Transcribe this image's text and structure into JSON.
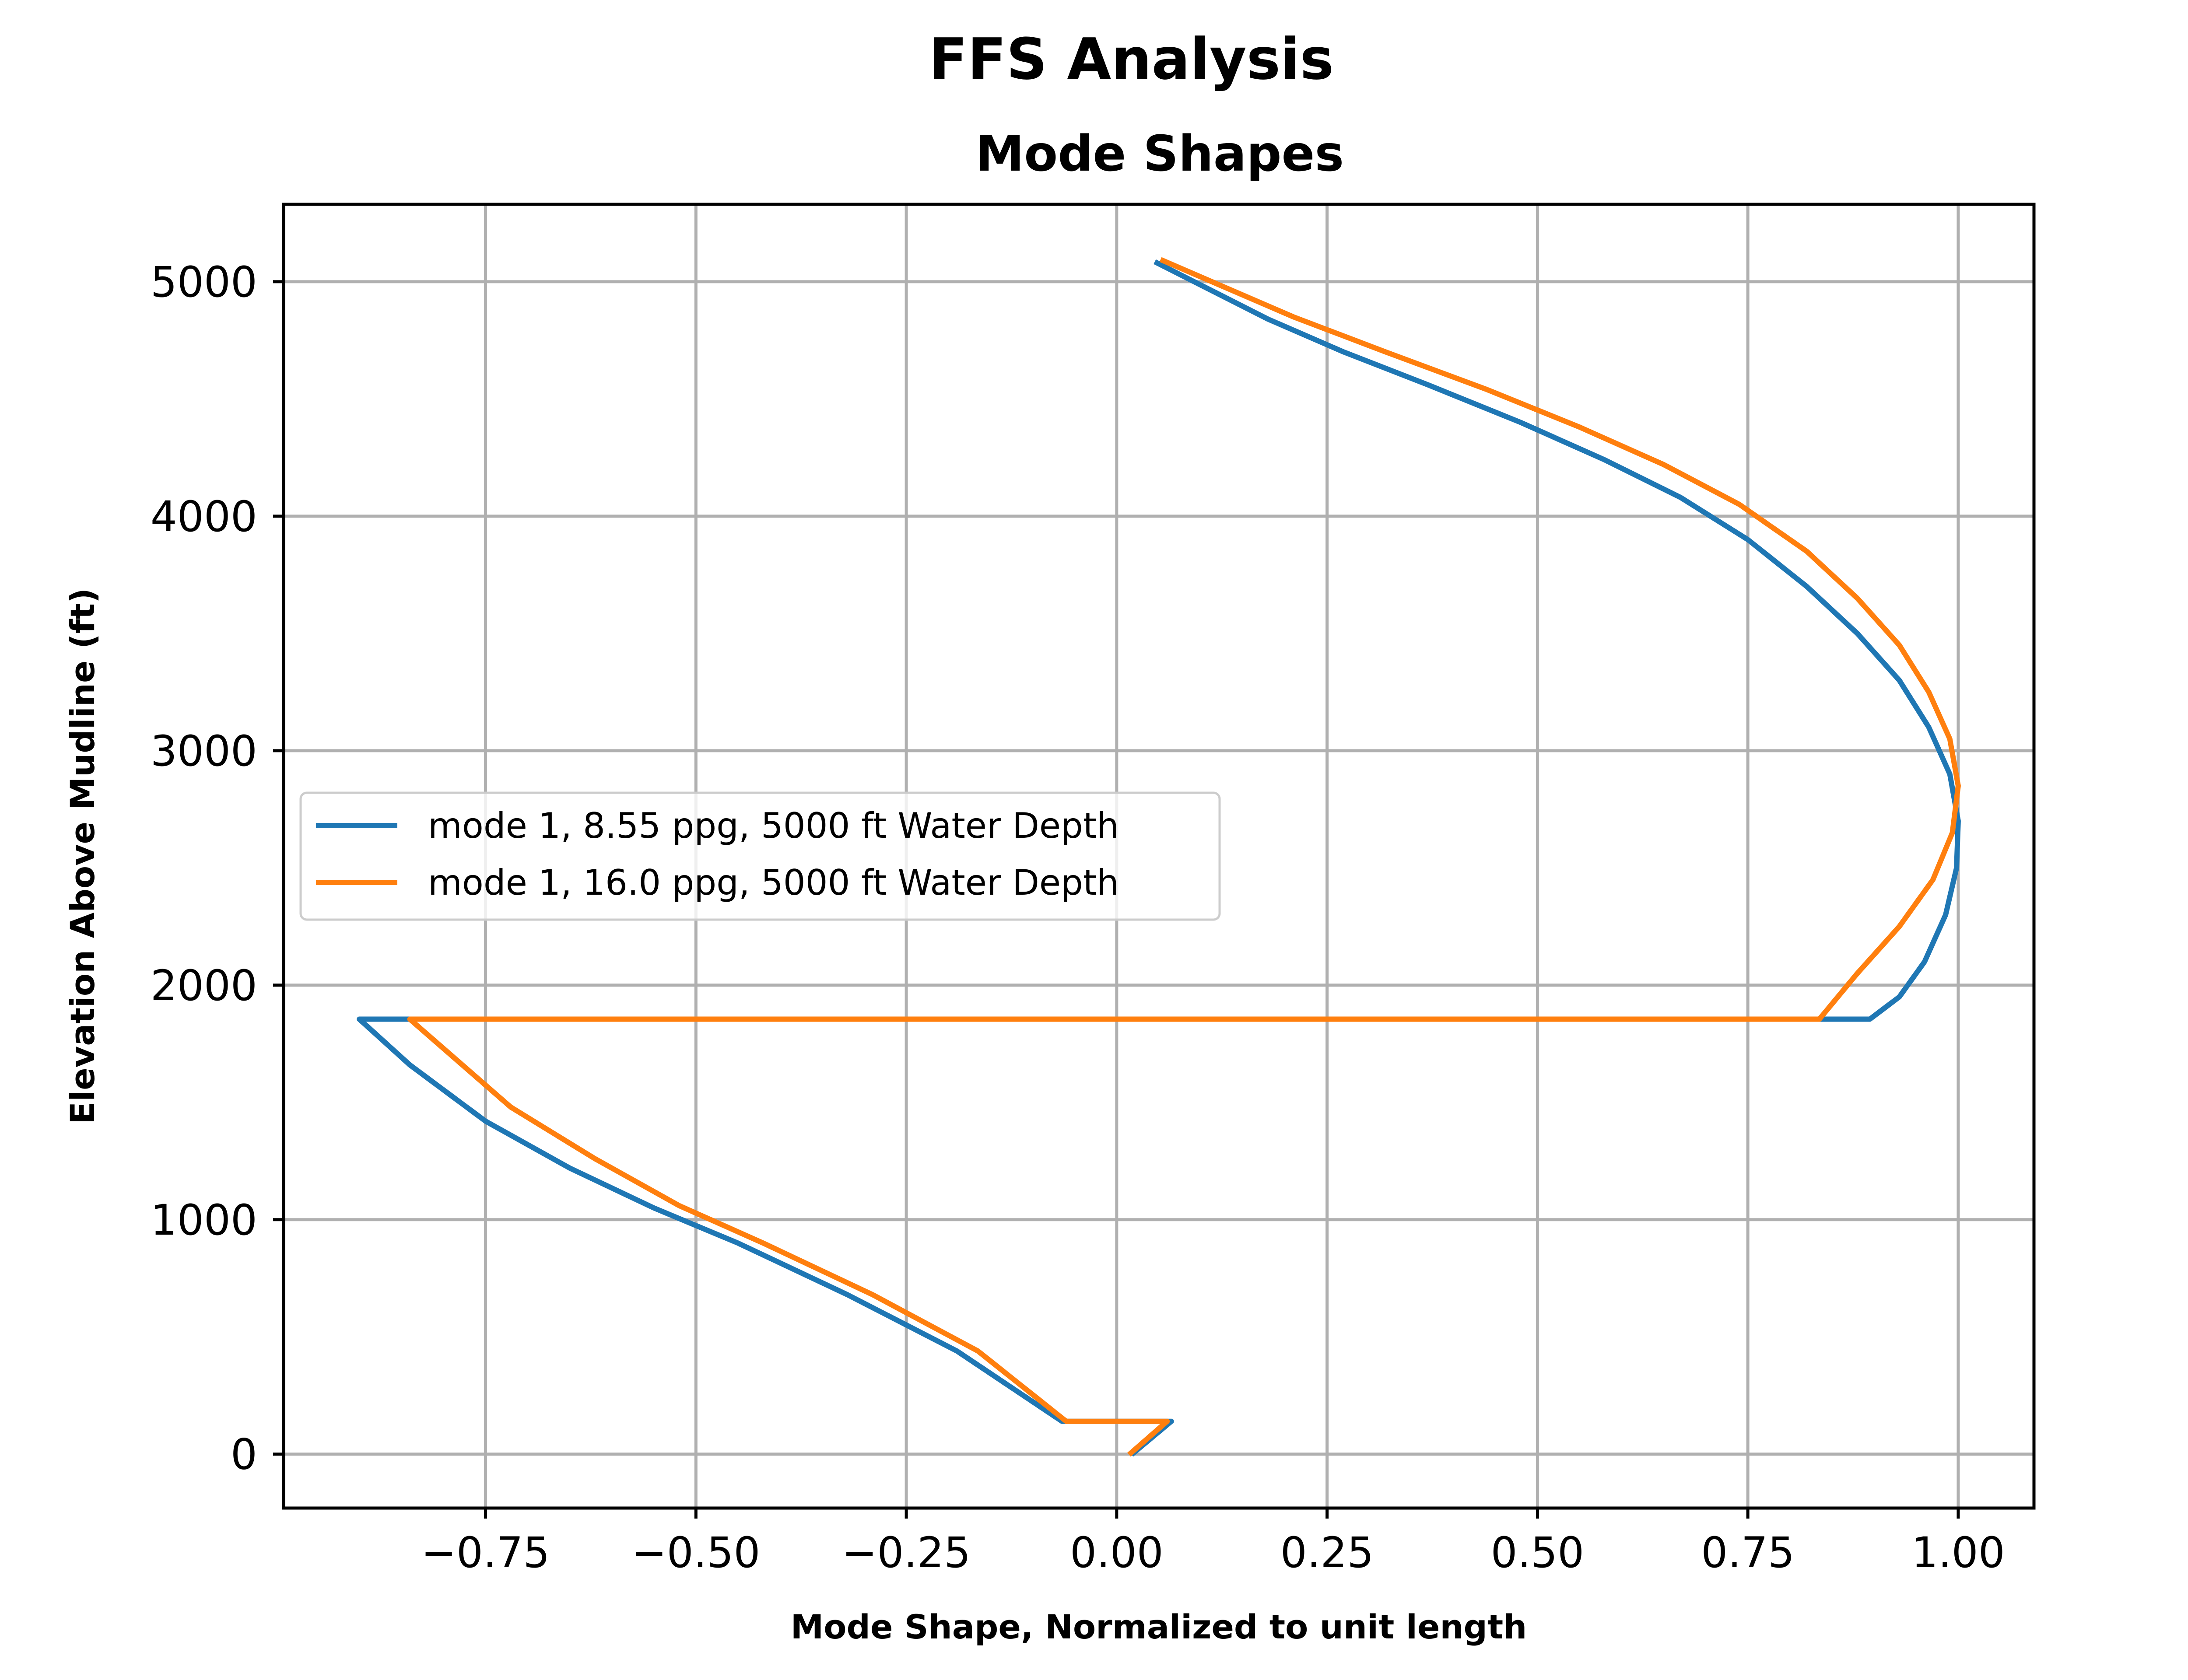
{
  "chart_data": {
    "type": "line",
    "suptitle": "FFS Analysis",
    "title": "Mode Shapes",
    "xlabel": "Mode Shape, Normalized to unit length",
    "ylabel": "Elevation Above Mudline (ft)",
    "xlim": [
      -0.99,
      1.09
    ],
    "ylim": [
      -230,
      5330
    ],
    "xticks": [
      -0.75,
      -0.5,
      -0.25,
      0.0,
      0.25,
      0.5,
      0.75,
      1.0
    ],
    "xtick_labels": [
      "−0.75",
      "−0.50",
      "−0.25",
      "0.00",
      "0.25",
      "0.50",
      "0.75",
      "1.00"
    ],
    "yticks": [
      0,
      1000,
      2000,
      3000,
      4000,
      5000
    ],
    "ytick_labels": [
      "0",
      "1000",
      "2000",
      "3000",
      "4000",
      "5000"
    ],
    "grid": true,
    "legend_position": "center-left",
    "series": [
      {
        "name": "mode 1, 8.55 ppg, 5000 ft Water Depth",
        "color": "#1f77b4",
        "x": [
          0.02,
          0.065,
          -0.065,
          -0.19,
          -0.32,
          -0.45,
          -0.55,
          -0.65,
          -0.75,
          -0.84,
          -0.9,
          0.895,
          0.93,
          0.96,
          0.985,
          0.998,
          1.0,
          0.99,
          0.965,
          0.93,
          0.88,
          0.82,
          0.75,
          0.67,
          0.58,
          0.48,
          0.37,
          0.27,
          0.18,
          0.048
        ],
        "y": [
          5,
          140,
          140,
          440,
          680,
          900,
          1050,
          1220,
          1420,
          1660,
          1855,
          1855,
          1950,
          2100,
          2300,
          2500,
          2700,
          2900,
          3100,
          3300,
          3500,
          3700,
          3900,
          4080,
          4240,
          4400,
          4560,
          4700,
          4840,
          5080
        ]
      },
      {
        "name": "mode 1, 16.0 ppg, 5000 ft Water Depth",
        "color": "#ff7f0e",
        "x": [
          0.017,
          0.06,
          -0.06,
          -0.165,
          -0.29,
          -0.42,
          -0.52,
          -0.62,
          -0.72,
          -0.84,
          0.835,
          0.88,
          0.93,
          0.97,
          0.993,
          1.0,
          0.99,
          0.965,
          0.93,
          0.88,
          0.82,
          0.74,
          0.65,
          0.55,
          0.44,
          0.32,
          0.21,
          0.055
        ],
        "y": [
          5,
          140,
          140,
          440,
          680,
          900,
          1060,
          1260,
          1480,
          1855,
          1855,
          2050,
          2250,
          2450,
          2650,
          2850,
          3050,
          3250,
          3450,
          3650,
          3850,
          4050,
          4220,
          4380,
          4540,
          4700,
          4850,
          5090
        ]
      }
    ]
  }
}
